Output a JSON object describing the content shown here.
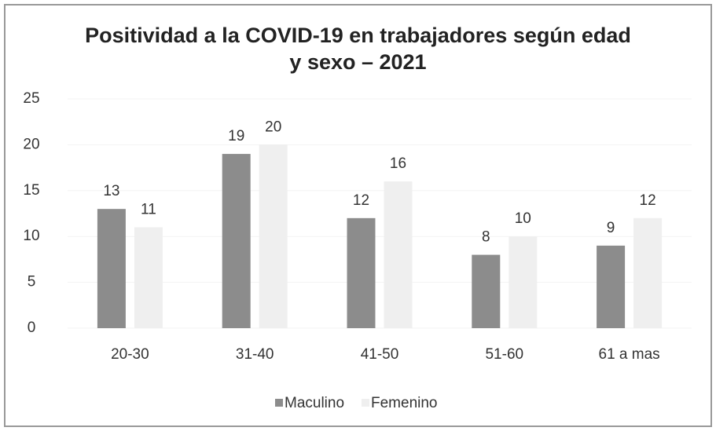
{
  "chart_data": {
    "type": "bar",
    "title": "Positividad a la COVID-19 en trabajadores según edad y sexo – 2021",
    "categories": [
      "20-30",
      "31-40",
      "41-50",
      "51-60",
      "61 a mas"
    ],
    "series": [
      {
        "name": "Maculino",
        "color": "#8c8c8c",
        "values": [
          13,
          19,
          12,
          8,
          9
        ]
      },
      {
        "name": "Femenino",
        "color": "#efefef",
        "values": [
          11,
          20,
          16,
          10,
          12
        ]
      }
    ],
    "ylim": [
      0,
      25
    ],
    "yticks": [
      0,
      5,
      10,
      15,
      20,
      25
    ],
    "grid": true,
    "legend": "bottom"
  }
}
